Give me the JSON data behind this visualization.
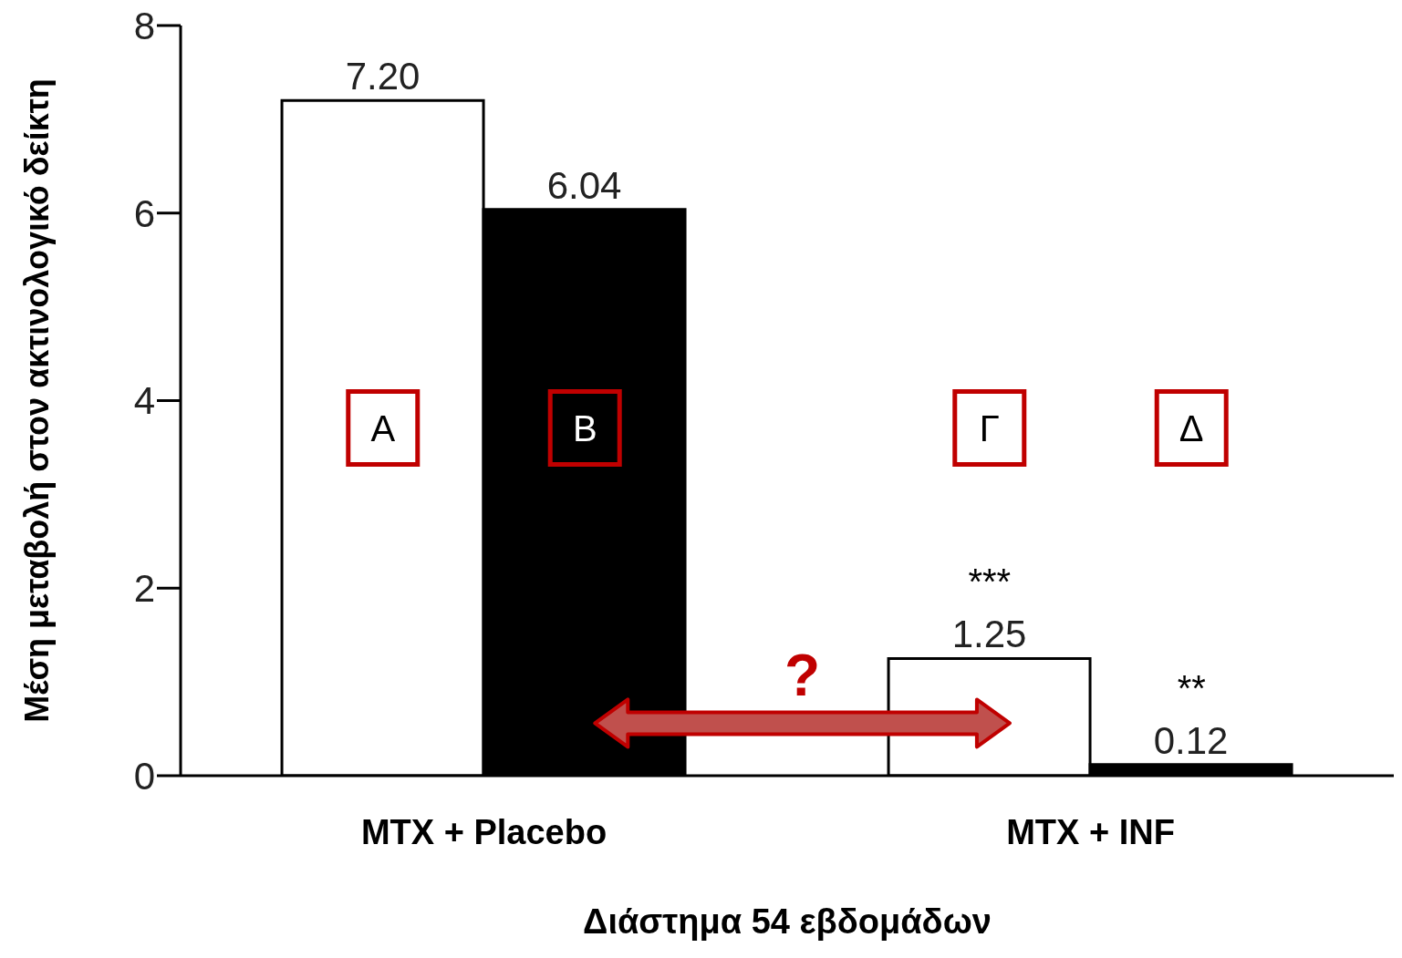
{
  "chart_data": {
    "type": "bar",
    "xlabel": "Διάστημα 54 εβδομάδων",
    "ylabel": "Μέση μεταβολή στον ακτινολογικό δείκτη",
    "categories": [
      "MTX + Placebo",
      "MTX + INF"
    ],
    "series": [
      {
        "color": "#ffffff",
        "values": [
          7.2,
          1.25
        ],
        "value_labels": [
          "7.20",
          "1.25"
        ]
      },
      {
        "color": "#000000",
        "values": [
          6.04,
          0.12
        ],
        "value_labels": [
          "6.04",
          "0.12"
        ]
      }
    ],
    "ylim": [
      0,
      8
    ],
    "yticks": [
      0,
      2,
      4,
      6,
      8
    ],
    "annotations": [
      "A",
      "B",
      "Γ",
      "Δ",
      "***",
      "**",
      "?"
    ]
  }
}
